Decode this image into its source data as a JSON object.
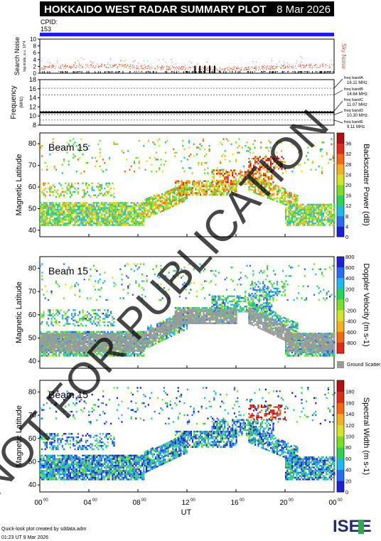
{
  "header": {
    "title": "HOKKAIDO WEST RADAR SUMMARY PLOT",
    "date": "8 Mar 2026"
  },
  "cpid": {
    "label": "CPID:",
    "value": "153"
  },
  "watermark": "NOT FOR PUBLICATION",
  "footer": {
    "line1": "Quick-look plot created by sddata.adm",
    "line2": "01:23 UT 9 Mar 2026",
    "logo": "ISEE"
  },
  "chart_data": [
    {
      "type": "scatter",
      "panel": "search_noise",
      "ylabel": "Search Noise",
      "ylabel_sub": "log-scale, a.u. 10^4",
      "series": [
        {
          "name": "Sky Noise",
          "color": "#d9532b"
        }
      ],
      "ylim": [
        0,
        10
      ],
      "yticks": [
        0,
        2,
        4,
        6,
        8,
        10
      ],
      "baseline_level": 1.8
    },
    {
      "type": "line",
      "panel": "frequency",
      "ylabel": "Frequency",
      "ylabel_sub": "(MHz)",
      "ylim": [
        8,
        18
      ],
      "yticks": [
        8,
        10,
        12,
        14,
        16,
        18
      ],
      "operating_frequency": 10.8,
      "bands": [
        {
          "name": "freq bandA",
          "value": "16.11 MHz",
          "level": 16.11
        },
        {
          "name": "freq bandB",
          "value": "14.64 MHz",
          "level": 14.64
        },
        {
          "name": "freq bandC",
          "value": "11.07 MHz",
          "level": 11.07
        },
        {
          "name": "freq bandD",
          "value": "10.30 MHz",
          "level": 10.3
        },
        {
          "name": "freq bandE",
          "value": "9.11 MHz",
          "level": 9.11
        }
      ]
    },
    {
      "type": "heatmap",
      "panel": "power",
      "beam": "Beam 15",
      "ylabel": "Magnetic Latitude",
      "ylim": [
        37,
        85
      ],
      "yticks": [
        40,
        50,
        60,
        70,
        80
      ],
      "colorbar_label": "Backscatter Power (dB)",
      "colorbar_ticks": [
        "0",
        "4",
        "8",
        "12",
        "16",
        "20",
        "24",
        "28",
        "32",
        "36"
      ],
      "colors": [
        "#1f1fd6",
        "#2a6cf0",
        "#1fb8e8",
        "#2dd15a",
        "#7ade28",
        "#d6e61e",
        "#f2b21c",
        "#ee6a16",
        "#e02a1a",
        "#b01010"
      ]
    },
    {
      "type": "heatmap",
      "panel": "velocity",
      "beam": "Beam 15",
      "ylabel": "Magnetic Latitude",
      "ylim": [
        37,
        85
      ],
      "yticks": [
        40,
        50,
        60,
        70,
        80
      ],
      "colorbar_label": "Doppler Velocity (m s-1)",
      "colorbar_ticks": [
        "800",
        "600",
        "400",
        "200",
        "0",
        "-200",
        "-400",
        "-600",
        "-800"
      ],
      "ground_scatter_label": "Ground Scatter",
      "colors": [
        "#1f1fd6",
        "#2a6cf0",
        "#1fb8e8",
        "#2dd15a",
        "#7ade28",
        "#d6e61e",
        "#f2b21c",
        "#ee6a16",
        "#e02a1a"
      ]
    },
    {
      "type": "heatmap",
      "panel": "width",
      "beam": "Beam 15",
      "ylabel": "Magnetic Latitude",
      "ylim": [
        37,
        85
      ],
      "yticks": [
        40,
        50,
        60,
        70,
        80
      ],
      "colorbar_label": "Spectral Width (m s-1)",
      "colorbar_ticks": [
        "0",
        "20",
        "40",
        "60",
        "80",
        "100",
        "120",
        "140",
        "160",
        "180"
      ],
      "colors": [
        "#1f1fd6",
        "#2a6cf0",
        "#1fb8e8",
        "#2dd15a",
        "#7ade28",
        "#d6e61e",
        "#f2b21c",
        "#ee6a16",
        "#e02a1a",
        "#b01010"
      ]
    }
  ],
  "x_axis": {
    "label": "UT",
    "ticks": [
      {
        "h": "00",
        "m": "00",
        "hour": 0
      },
      {
        "h": "04",
        "m": "00",
        "hour": 4
      },
      {
        "h": "08",
        "m": "00",
        "hour": 8
      },
      {
        "h": "12",
        "m": "00",
        "hour": 12
      },
      {
        "h": "16",
        "m": "00",
        "hour": 16
      },
      {
        "h": "20",
        "m": "00",
        "hour": 20
      },
      {
        "h": "00",
        "m": "00",
        "hour": 24
      }
    ]
  }
}
